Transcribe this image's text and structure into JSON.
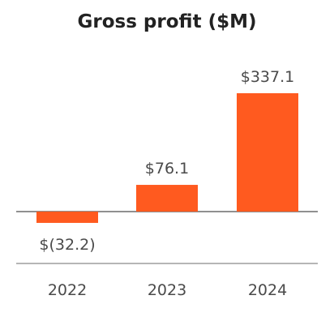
{
  "chart_data": {
    "type": "bar",
    "title": "Gross profit ($M)",
    "categories": [
      "2022",
      "2023",
      "2024"
    ],
    "values": [
      -32.2,
      76.1,
      337.1
    ],
    "data_labels": [
      "$(32.2)",
      "$76.1",
      "$337.1"
    ],
    "ylim": [
      -150,
      375
    ],
    "grid": false,
    "bar_color": "#FF5A1F"
  }
}
